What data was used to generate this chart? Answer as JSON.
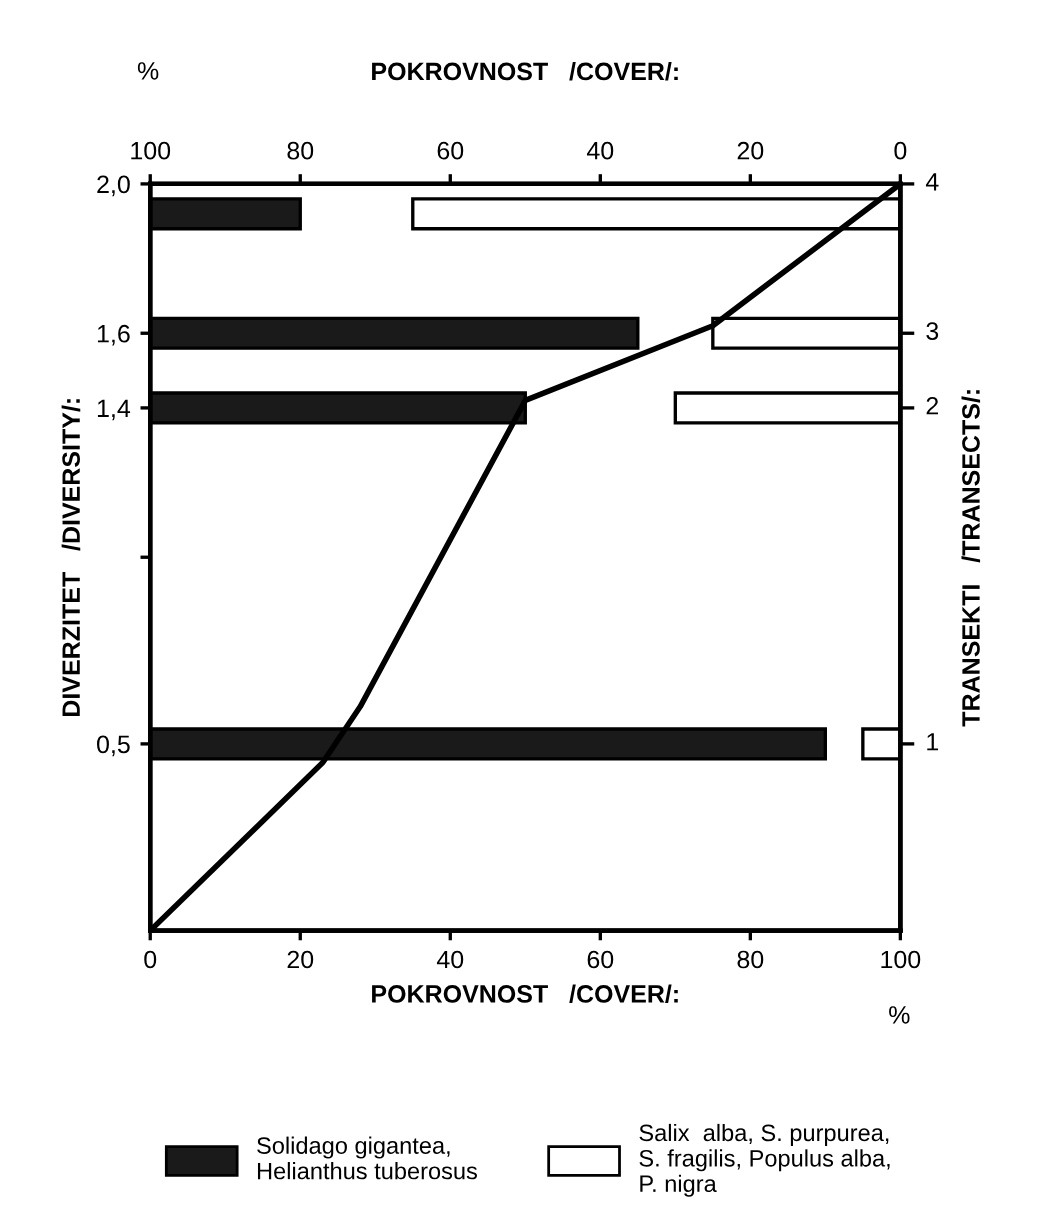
{
  "chart_data": {
    "type": "bar",
    "orientation": "horizontal",
    "xlabel": "POKROVNOST   /COVER/:",
    "x2label": "POKROVNOST   /COVER/:",
    "ylabel": "DIVERZITET   /DIVERSITY/:",
    "y2label": "TRANSEKTI   /TRANSECTS/:",
    "annotations": [
      "%",
      "%",
      "1",
      "2",
      "3",
      "4"
    ],
    "xlim": [
      0,
      100
    ],
    "xticks": [
      0,
      20,
      40,
      60,
      80,
      100
    ],
    "x2lim": [
      100,
      0
    ],
    "x2ticks": [
      100,
      80,
      60,
      40,
      20,
      0
    ],
    "ylim": [
      0,
      2.0
    ],
    "yticks": [
      {
        "value": 0.5,
        "label": "0,5"
      },
      {
        "value": 1.0,
        "label": null
      },
      {
        "value": 1.4,
        "label": "1,4"
      },
      {
        "value": 1.6,
        "label": "1,6"
      },
      {
        "value": 2.0,
        "label": "2,0"
      }
    ],
    "series": [
      {
        "name": "Solidago gigantea,\nHelianthus tuberosus",
        "color": "#1a1a1a",
        "x": [
          0.5,
          1.4,
          1.6,
          1.92
        ],
        "base": [
          0,
          0,
          0,
          0
        ],
        "values": [
          90,
          50,
          65,
          20
        ]
      },
      {
        "name": "Salix  alba, S. purpurea,\nS. fragilis, Populus alba,\nP. nigra",
        "color": "#ffffff",
        "x": [
          0.5,
          1.4,
          1.6,
          1.92
        ],
        "base": [
          95,
          70,
          75,
          35
        ],
        "values": [
          5,
          30,
          25,
          65
        ]
      },
      {
        "type": "line",
        "color": "#000000",
        "x": [
          0,
          0.45,
          0.6,
          1.42,
          1.62,
          2.0
        ],
        "values": [
          0,
          23,
          28,
          50,
          75,
          100
        ]
      }
    ],
    "legend": "bottom",
    "grid": false
  }
}
